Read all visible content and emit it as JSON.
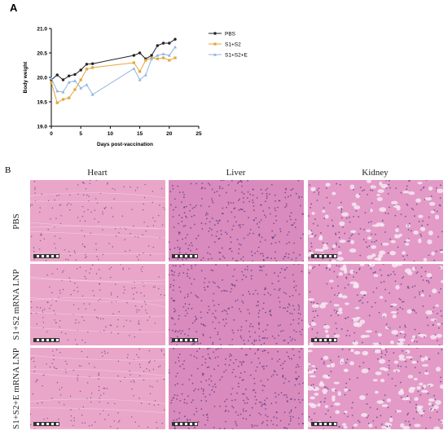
{
  "panel_a_label": "A",
  "panel_b_label": "B",
  "chart_data": {
    "type": "line",
    "xlabel": "Days post-vaccination",
    "ylabel": "Body weight",
    "xlim": [
      0,
      25
    ],
    "ylim": [
      19.0,
      21.0
    ],
    "xticks": [
      "0",
      "5",
      "10",
      "15",
      "20",
      "25"
    ],
    "yticks": [
      "19.0",
      "19.5",
      "20.0",
      "20.5",
      "21.0"
    ],
    "legend_position": "top-right",
    "grid": false,
    "series": [
      {
        "name": "PBS",
        "color": "#222222",
        "marker": "circle",
        "x": [
          0,
          1,
          2,
          3,
          4,
          5,
          6,
          7,
          14,
          15,
          16,
          17,
          18,
          19,
          20,
          21
        ],
        "y": [
          19.95,
          20.05,
          19.95,
          20.03,
          20.06,
          20.15,
          20.27,
          20.28,
          20.45,
          20.5,
          20.38,
          20.45,
          20.65,
          20.7,
          20.7,
          20.78
        ]
      },
      {
        "name": "S1+S2",
        "color": "#e3a63a",
        "marker": "square",
        "x": [
          0,
          1,
          2,
          3,
          4,
          5,
          6,
          7,
          14,
          15,
          16,
          17,
          18,
          19,
          20,
          21
        ],
        "y": [
          19.9,
          19.48,
          19.55,
          19.58,
          19.75,
          19.95,
          20.17,
          20.2,
          20.3,
          20.12,
          20.35,
          20.4,
          20.38,
          20.4,
          20.35,
          20.4
        ]
      },
      {
        "name": "S1+S2+E",
        "color": "#8fb4de",
        "marker": "triangle",
        "x": [
          0,
          1,
          2,
          3,
          4,
          5,
          6,
          7,
          14,
          15,
          16,
          17,
          18,
          19,
          20,
          21
        ],
        "y": [
          19.98,
          19.72,
          19.7,
          19.9,
          19.93,
          19.78,
          19.85,
          19.65,
          20.18,
          19.95,
          20.05,
          20.38,
          20.45,
          20.48,
          20.45,
          20.62
        ]
      }
    ]
  },
  "histology": {
    "columns": [
      "Heart",
      "Liver",
      "Kidney"
    ],
    "rows": [
      "PBS",
      "S1+S2 mRNA LNP",
      "S1+S2+E mRNA LNP"
    ]
  },
  "tissue_colors": {
    "background": "#e7a3c8",
    "nuclei": "#5c3a86",
    "vessel": "#f6e9f2"
  }
}
